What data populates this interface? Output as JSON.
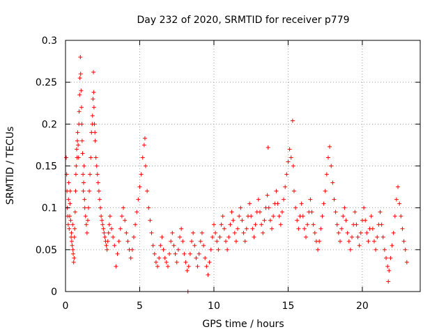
{
  "chart_data": {
    "type": "scatter",
    "title": "Day 232 of 2020, SRMTID for receiver p779",
    "xlabel": "GPS time / hours",
    "ylabel": "SRMTID / TECUs",
    "xlim": [
      0,
      23.9
    ],
    "ylim": [
      0,
      0.3
    ],
    "xticks": [
      0,
      5,
      10,
      15,
      20
    ],
    "xtick_labels": [
      "0",
      "5",
      "10",
      "15",
      "20"
    ],
    "yticks": [
      0,
      0.05,
      0.1,
      0.15,
      0.2,
      0.25,
      0.3
    ],
    "ytick_labels": [
      "0",
      "0.05",
      "0.1",
      "0.15",
      "0.2",
      "0.25",
      "0.3"
    ],
    "grid": true,
    "marker": "+",
    "series_color": "#ff0000",
    "series": [
      {
        "name": "SRMTID",
        "points": [
          [
            0.05,
            0.16
          ],
          [
            0.08,
            0.14
          ],
          [
            0.1,
            0.12
          ],
          [
            0.12,
            0.1
          ],
          [
            0.15,
            0.09
          ],
          [
            0.18,
            0.08
          ],
          [
            0.2,
            0.11
          ],
          [
            0.22,
            0.13
          ],
          [
            0.25,
            0.075
          ],
          [
            0.28,
            0.09
          ],
          [
            0.3,
            0.105
          ],
          [
            0.32,
            0.12
          ],
          [
            0.35,
            0.085
          ],
          [
            0.38,
            0.065
          ],
          [
            0.4,
            0.07
          ],
          [
            0.42,
            0.06
          ],
          [
            0.45,
            0.055
          ],
          [
            0.48,
            0.08
          ],
          [
            0.5,
            0.05
          ],
          [
            0.52,
            0.045
          ],
          [
            0.55,
            0.035
          ],
          [
            0.58,
            0.04
          ],
          [
            0.6,
            0.065
          ],
          [
            0.62,
            0.075
          ],
          [
            0.65,
            0.095
          ],
          [
            0.68,
            0.12
          ],
          [
            0.7,
            0.14
          ],
          [
            0.72,
            0.15
          ],
          [
            0.75,
            0.17
          ],
          [
            0.78,
            0.16
          ],
          [
            0.8,
            0.18
          ],
          [
            0.82,
            0.19
          ],
          [
            0.85,
            0.175
          ],
          [
            0.88,
            0.16
          ],
          [
            0.9,
            0.2
          ],
          [
            0.92,
            0.215
          ],
          [
            0.95,
            0.235
          ],
          [
            0.97,
            0.255
          ],
          [
            1.0,
            0.28
          ],
          [
            1.02,
            0.26
          ],
          [
            1.05,
            0.24
          ],
          [
            1.08,
            0.22
          ],
          [
            1.1,
            0.2
          ],
          [
            1.12,
            0.18
          ],
          [
            1.15,
            0.165
          ],
          [
            1.18,
            0.14
          ],
          [
            1.2,
            0.12
          ],
          [
            1.22,
            0.13
          ],
          [
            1.25,
            0.15
          ],
          [
            1.28,
            0.11
          ],
          [
            1.3,
            0.1
          ],
          [
            1.35,
            0.09
          ],
          [
            1.4,
            0.08
          ],
          [
            1.45,
            0.07
          ],
          [
            1.5,
            0.085
          ],
          [
            1.55,
            0.1
          ],
          [
            1.6,
            0.12
          ],
          [
            1.65,
            0.14
          ],
          [
            1.7,
            0.16
          ],
          [
            1.75,
            0.19
          ],
          [
            1.8,
            0.2
          ],
          [
            1.82,
            0.21
          ],
          [
            1.85,
            0.23
          ],
          [
            1.88,
            0.262
          ],
          [
            1.9,
            0.238
          ],
          [
            1.92,
            0.22
          ],
          [
            1.95,
            0.2
          ],
          [
            1.98,
            0.19
          ],
          [
            2.0,
            0.18
          ],
          [
            2.05,
            0.16
          ],
          [
            2.1,
            0.15
          ],
          [
            2.15,
            0.14
          ],
          [
            2.2,
            0.13
          ],
          [
            2.25,
            0.12
          ],
          [
            2.3,
            0.11
          ],
          [
            2.35,
            0.1
          ],
          [
            2.4,
            0.09
          ],
          [
            2.45,
            0.085
          ],
          [
            2.5,
            0.08
          ],
          [
            2.55,
            0.075
          ],
          [
            2.6,
            0.07
          ],
          [
            2.65,
            0.065
          ],
          [
            2.7,
            0.06
          ],
          [
            2.75,
            0.055
          ],
          [
            2.8,
            0.05
          ],
          [
            2.85,
            0.06
          ],
          [
            2.9,
            0.07
          ],
          [
            2.95,
            0.08
          ],
          [
            3.0,
            0.09
          ],
          [
            3.1,
            0.075
          ],
          [
            3.2,
            0.065
          ],
          [
            3.3,
            0.055
          ],
          [
            3.4,
            0.03
          ],
          [
            3.5,
            0.045
          ],
          [
            3.6,
            0.06
          ],
          [
            3.7,
            0.075
          ],
          [
            3.8,
            0.09
          ],
          [
            3.9,
            0.1
          ],
          [
            4.0,
            0.085
          ],
          [
            4.1,
            0.07
          ],
          [
            4.2,
            0.06
          ],
          [
            4.3,
            0.05
          ],
          [
            4.4,
            0.04
          ],
          [
            4.5,
            0.05
          ],
          [
            4.6,
            0.065
          ],
          [
            4.7,
            0.08
          ],
          [
            4.8,
            0.095
          ],
          [
            4.9,
            0.11
          ],
          [
            5.0,
            0.125
          ],
          [
            5.1,
            0.14
          ],
          [
            5.2,
            0.16
          ],
          [
            5.3,
            0.175
          ],
          [
            5.35,
            0.183
          ],
          [
            5.4,
            0.15
          ],
          [
            5.5,
            0.12
          ],
          [
            5.6,
            0.1
          ],
          [
            5.7,
            0.085
          ],
          [
            5.8,
            0.07
          ],
          [
            5.9,
            0.055
          ],
          [
            6.0,
            0.045
          ],
          [
            6.1,
            0.035
          ],
          [
            6.2,
            0.03
          ],
          [
            6.3,
            0.04
          ],
          [
            6.4,
            0.055
          ],
          [
            6.5,
            0.065
          ],
          [
            6.6,
            0.05
          ],
          [
            6.7,
            0.04
          ],
          [
            6.8,
            0.035
          ],
          [
            6.9,
            0.03
          ],
          [
            7.0,
            0.045
          ],
          [
            7.1,
            0.06
          ],
          [
            7.2,
            0.07
          ],
          [
            7.3,
            0.055
          ],
          [
            7.4,
            0.045
          ],
          [
            7.5,
            0.035
          ],
          [
            7.6,
            0.05
          ],
          [
            7.7,
            0.065
          ],
          [
            7.8,
            0.075
          ],
          [
            7.9,
            0.06
          ],
          [
            8.0,
            0.045
          ],
          [
            8.1,
            0.035
          ],
          [
            8.2,
            0.025
          ],
          [
            8.25,
            0.0
          ],
          [
            8.3,
            0.03
          ],
          [
            8.4,
            0.045
          ],
          [
            8.5,
            0.06
          ],
          [
            8.6,
            0.07
          ],
          [
            8.7,
            0.055
          ],
          [
            8.8,
            0.04
          ],
          [
            8.9,
            0.03
          ],
          [
            9.0,
            0.045
          ],
          [
            9.1,
            0.06
          ],
          [
            9.2,
            0.07
          ],
          [
            9.3,
            0.055
          ],
          [
            9.4,
            0.04
          ],
          [
            9.5,
            0.03
          ],
          [
            9.6,
            0.02
          ],
          [
            9.7,
            0.035
          ],
          [
            9.8,
            0.05
          ],
          [
            9.9,
            0.065
          ],
          [
            10.0,
            0.08
          ],
          [
            10.1,
            0.07
          ],
          [
            10.2,
            0.06
          ],
          [
            10.3,
            0.05
          ],
          [
            10.4,
            0.065
          ],
          [
            10.5,
            0.08
          ],
          [
            10.6,
            0.09
          ],
          [
            10.7,
            0.075
          ],
          [
            10.8,
            0.06
          ],
          [
            10.9,
            0.05
          ],
          [
            11.0,
            0.065
          ],
          [
            11.1,
            0.08
          ],
          [
            11.2,
            0.095
          ],
          [
            11.3,
            0.085
          ],
          [
            11.4,
            0.07
          ],
          [
            11.5,
            0.06
          ],
          [
            11.6,
            0.075
          ],
          [
            11.7,
            0.09
          ],
          [
            11.8,
            0.1
          ],
          [
            11.9,
            0.085
          ],
          [
            12.0,
            0.07
          ],
          [
            12.1,
            0.06
          ],
          [
            12.2,
            0.075
          ],
          [
            12.3,
            0.09
          ],
          [
            12.4,
            0.105
          ],
          [
            12.5,
            0.09
          ],
          [
            12.6,
            0.075
          ],
          [
            12.7,
            0.065
          ],
          [
            12.8,
            0.08
          ],
          [
            12.9,
            0.095
          ],
          [
            13.0,
            0.11
          ],
          [
            13.1,
            0.095
          ],
          [
            13.2,
            0.08
          ],
          [
            13.3,
            0.07
          ],
          [
            13.4,
            0.085
          ],
          [
            13.5,
            0.1
          ],
          [
            13.6,
            0.115
          ],
          [
            13.65,
            0.172
          ],
          [
            13.7,
            0.1
          ],
          [
            13.8,
            0.085
          ],
          [
            13.9,
            0.075
          ],
          [
            14.0,
            0.09
          ],
          [
            14.1,
            0.105
          ],
          [
            14.2,
            0.12
          ],
          [
            14.3,
            0.105
          ],
          [
            14.4,
            0.09
          ],
          [
            14.5,
            0.08
          ],
          [
            14.6,
            0.095
          ],
          [
            14.7,
            0.11
          ],
          [
            14.8,
            0.125
          ],
          [
            14.9,
            0.14
          ],
          [
            15.0,
            0.155
          ],
          [
            15.1,
            0.17
          ],
          [
            15.2,
            0.16
          ],
          [
            15.3,
            0.204
          ],
          [
            15.35,
            0.15
          ],
          [
            15.4,
            0.12
          ],
          [
            15.5,
            0.1
          ],
          [
            15.6,
            0.085
          ],
          [
            15.7,
            0.075
          ],
          [
            15.8,
            0.09
          ],
          [
            15.9,
            0.105
          ],
          [
            16.0,
            0.09
          ],
          [
            16.1,
            0.075
          ],
          [
            16.2,
            0.065
          ],
          [
            16.3,
            0.08
          ],
          [
            16.4,
            0.095
          ],
          [
            16.5,
            0.11
          ],
          [
            16.6,
            0.095
          ],
          [
            16.7,
            0.08
          ],
          [
            16.8,
            0.07
          ],
          [
            16.9,
            0.06
          ],
          [
            17.0,
            0.05
          ],
          [
            17.1,
            0.06
          ],
          [
            17.2,
            0.075
          ],
          [
            17.3,
            0.09
          ],
          [
            17.4,
            0.105
          ],
          [
            17.5,
            0.12
          ],
          [
            17.6,
            0.14
          ],
          [
            17.7,
            0.16
          ],
          [
            17.8,
            0.173
          ],
          [
            17.9,
            0.15
          ],
          [
            18.0,
            0.13
          ],
          [
            18.1,
            0.11
          ],
          [
            18.2,
            0.095
          ],
          [
            18.3,
            0.08
          ],
          [
            18.4,
            0.07
          ],
          [
            18.5,
            0.06
          ],
          [
            18.6,
            0.075
          ],
          [
            18.7,
            0.09
          ],
          [
            18.8,
            0.1
          ],
          [
            18.9,
            0.085
          ],
          [
            19.0,
            0.07
          ],
          [
            19.1,
            0.06
          ],
          [
            19.2,
            0.05
          ],
          [
            19.3,
            0.065
          ],
          [
            19.4,
            0.08
          ],
          [
            19.5,
            0.095
          ],
          [
            19.6,
            0.08
          ],
          [
            19.7,
            0.065
          ],
          [
            19.8,
            0.055
          ],
          [
            19.9,
            0.07
          ],
          [
            20.0,
            0.085
          ],
          [
            20.1,
            0.1
          ],
          [
            20.2,
            0.085
          ],
          [
            20.3,
            0.07
          ],
          [
            20.4,
            0.06
          ],
          [
            20.5,
            0.075
          ],
          [
            20.6,
            0.09
          ],
          [
            20.7,
            0.075
          ],
          [
            20.8,
            0.06
          ],
          [
            20.9,
            0.05
          ],
          [
            21.0,
            0.065
          ],
          [
            21.1,
            0.08
          ],
          [
            21.2,
            0.095
          ],
          [
            21.3,
            0.08
          ],
          [
            21.4,
            0.065
          ],
          [
            21.5,
            0.05
          ],
          [
            21.6,
            0.04
          ],
          [
            21.7,
            0.03
          ],
          [
            21.75,
            0.012
          ],
          [
            21.8,
            0.025
          ],
          [
            21.9,
            0.04
          ],
          [
            22.0,
            0.055
          ],
          [
            22.1,
            0.07
          ],
          [
            22.2,
            0.09
          ],
          [
            22.3,
            0.11
          ],
          [
            22.4,
            0.125
          ],
          [
            22.5,
            0.105
          ],
          [
            22.6,
            0.09
          ],
          [
            22.7,
            0.075
          ],
          [
            22.8,
            0.06
          ],
          [
            22.9,
            0.05
          ],
          [
            23.0,
            0.035
          ]
        ]
      }
    ]
  }
}
